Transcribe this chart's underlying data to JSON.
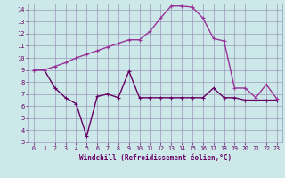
{
  "x": [
    0,
    1,
    2,
    3,
    4,
    5,
    6,
    7,
    8,
    9,
    10,
    11,
    12,
    13,
    14,
    15,
    16,
    17,
    18,
    19,
    20,
    21,
    22,
    23
  ],
  "y_main": [
    9.0,
    9.0,
    9.3,
    9.6,
    10.0,
    10.3,
    10.6,
    10.9,
    11.2,
    11.5,
    11.5,
    12.2,
    13.3,
    14.3,
    14.3,
    14.2,
    13.3,
    11.6,
    11.4,
    7.5,
    7.5,
    6.7,
    7.8,
    6.6
  ],
  "y_second": [
    9.0,
    9.0,
    7.5,
    6.7,
    6.2,
    3.5,
    6.8,
    7.0,
    6.7,
    8.9,
    6.7,
    6.7,
    6.7,
    6.7,
    6.7,
    6.7,
    6.7,
    7.5,
    6.7,
    6.7,
    6.5,
    6.5,
    6.5,
    6.5
  ],
  "line_color": "#993399",
  "line2_color": "#660066",
  "bg_color": "#cce8e8",
  "grid_color": "#9999bb",
  "xlabel": "Windchill (Refroidissement éolien,°C)",
  "xlim": [
    -0.5,
    23.5
  ],
  "ylim": [
    3.0,
    14.5
  ],
  "yticks": [
    3,
    4,
    5,
    6,
    7,
    8,
    9,
    10,
    11,
    12,
    13,
    14
  ],
  "xticks": [
    0,
    1,
    2,
    3,
    4,
    5,
    6,
    7,
    8,
    9,
    10,
    11,
    12,
    13,
    14,
    15,
    16,
    17,
    18,
    19,
    20,
    21,
    22,
    23
  ],
  "tick_color": "#660066",
  "font_family": "monospace"
}
